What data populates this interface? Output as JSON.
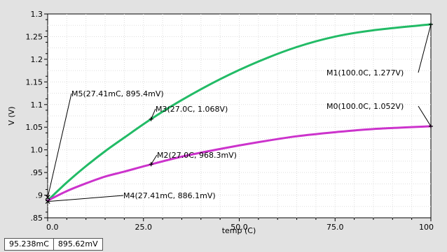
{
  "chart_data": {
    "type": "line",
    "xlabel": "temp (C)",
    "ylabel": "V (V)",
    "xlim": [
      0,
      100
    ],
    "ylim": [
      0.85,
      1.3
    ],
    "xticks": [
      0,
      25,
      50,
      75,
      100
    ],
    "xtick_labels": [
      "0.0",
      "25.0",
      "50.0",
      "75.0",
      "100"
    ],
    "yticks": [
      0.85,
      0.9,
      0.95,
      1.0,
      1.05,
      1.1,
      1.15,
      1.2,
      1.25,
      1.3
    ],
    "ytick_labels": [
      ".85",
      ".9",
      ".95",
      "1.0",
      "1.05",
      "1.1",
      "1.15",
      "1.2",
      "1.25",
      "1.3"
    ],
    "grid": true,
    "series": [
      {
        "color": "#22bb66",
        "x": [
          0,
          5,
          10,
          15,
          20,
          27,
          35,
          45,
          55,
          65,
          75,
          85,
          100
        ],
        "y": [
          0.888,
          0.928,
          0.964,
          0.997,
          1.027,
          1.068,
          1.11,
          1.156,
          1.195,
          1.227,
          1.25,
          1.264,
          1.277
        ]
      },
      {
        "color": "#cc33cc",
        "x": [
          0,
          5,
          10,
          15,
          20,
          27,
          35,
          45,
          55,
          65,
          75,
          85,
          100
        ],
        "y": [
          0.888,
          0.909,
          0.926,
          0.941,
          0.952,
          0.968,
          0.985,
          1.002,
          1.017,
          1.03,
          1.039,
          1.046,
          1.052
        ]
      }
    ],
    "markers": [
      {
        "label": "M1(100.0C, 1.277V)",
        "x": 100.0,
        "y": 1.277,
        "symbol": "+"
      },
      {
        "label": "M0(100.0C, 1.052V)",
        "x": 100.0,
        "y": 1.052,
        "symbol": "+"
      },
      {
        "label": "M3(27.0C, 1.068V)",
        "x": 27.0,
        "y": 1.068,
        "symbol": "+"
      },
      {
        "label": "M2(27.0C, 968.3mV)",
        "x": 27.0,
        "y": 0.9683,
        "symbol": "+"
      },
      {
        "label": "M5(27.41mC, 895.4mV)",
        "x": 0.02741,
        "y": 0.8954,
        "symbol": "x"
      },
      {
        "label": "M4(27.41mC, 886.1mV)",
        "x": 0.02741,
        "y": 0.8861,
        "symbol": "x"
      }
    ]
  },
  "status_bar": {
    "x_readout": "95.238mC",
    "y_readout": "895.62mV"
  }
}
